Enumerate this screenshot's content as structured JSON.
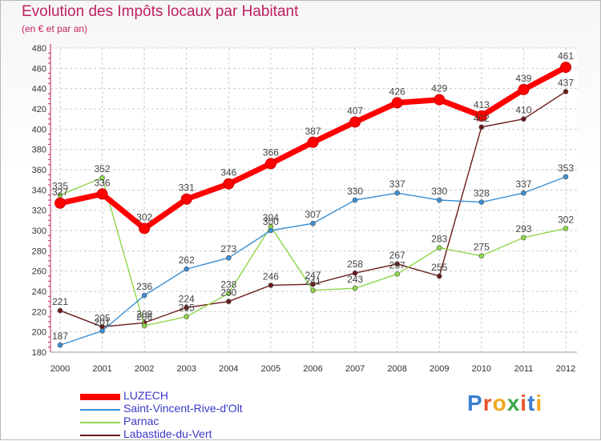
{
  "title": "Evolution des Impôts locaux par Habitant",
  "subtitle": "(en € et par an)",
  "logo": {
    "text": "Proxiti",
    "letters": [
      "P",
      "r",
      "o",
      "x",
      "i",
      "t",
      "i"
    ],
    "colors": [
      "#3a7fd0",
      "#e8562a",
      "#f2a81c",
      "#3aa84a",
      "#e8562a",
      "#3a7fd0",
      "#f2a81c"
    ]
  },
  "chart_data": {
    "type": "line",
    "x": [
      "2000",
      "2001",
      "2002",
      "2003",
      "2004",
      "2005",
      "2006",
      "2007",
      "2008",
      "2009",
      "2010",
      "2011",
      "2012"
    ],
    "ylim": [
      180,
      480
    ],
    "yticks": [
      180,
      200,
      220,
      240,
      260,
      280,
      300,
      320,
      340,
      360,
      380,
      400,
      420,
      440,
      460,
      480
    ],
    "series": [
      {
        "name": "LUZECH",
        "color": "#ff0000",
        "values": [
          327,
          336,
          302,
          331,
          346,
          366,
          387,
          407,
          426,
          429,
          413,
          439,
          461
        ]
      },
      {
        "name": "Saint-Vincent-Rive-d'Olt",
        "color": "#3b8fd4",
        "values": [
          187,
          201,
          236,
          262,
          273,
          300,
          307,
          330,
          337,
          330,
          328,
          337,
          353
        ]
      },
      {
        "name": "Parnac",
        "color": "#8fd64a",
        "values": [
          335,
          352,
          206,
          215,
          238,
          304,
          241,
          243,
          257,
          283,
          275,
          293,
          302
        ]
      },
      {
        "name": "Labastide-du-Vert",
        "color": "#6b1a1a",
        "values": [
          221,
          205,
          209,
          224,
          230,
          246,
          247,
          258,
          267,
          255,
          402,
          410,
          437
        ]
      }
    ]
  }
}
